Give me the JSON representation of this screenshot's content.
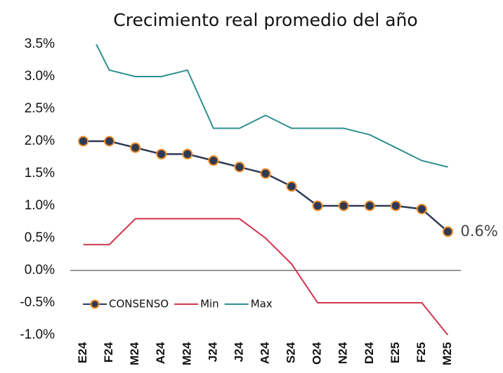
{
  "chart_data": {
    "type": "line",
    "title": "Crecimiento real promedio del año",
    "categories": [
      "E24",
      "F24",
      "M24",
      "A24",
      "M24",
      "J24",
      "J24",
      "A24",
      "S24",
      "O24",
      "N24",
      "D24",
      "E25",
      "F25",
      "M25"
    ],
    "series": [
      {
        "name": "CONSENSO",
        "color": "#2e3a55",
        "marker_color": "#f08a24",
        "values": [
          2.0,
          2.0,
          1.9,
          1.8,
          1.8,
          1.7,
          1.6,
          1.5,
          1.3,
          1.0,
          1.0,
          1.0,
          1.0,
          0.95,
          0.6
        ],
        "value_labels": [
          null,
          null,
          null,
          null,
          null,
          null,
          null,
          null,
          null,
          null,
          null,
          null,
          null,
          null,
          "0.6%"
        ]
      },
      {
        "name": "Min",
        "color": "#d0344e",
        "values": [
          0.4,
          0.4,
          0.8,
          0.8,
          0.8,
          0.8,
          0.8,
          0.5,
          0.1,
          -0.5,
          -0.5,
          -0.5,
          -0.5,
          -0.5,
          -1.0
        ]
      },
      {
        "name": "Max",
        "color": "#2f8f8f",
        "values": [
          3.9,
          3.1,
          3.0,
          3.0,
          3.1,
          2.2,
          2.2,
          2.4,
          2.2,
          2.2,
          2.2,
          2.1,
          1.9,
          1.7,
          1.6
        ]
      }
    ],
    "ylim": [
      -1.0,
      3.5
    ],
    "yticks": [
      {
        "value": 3.5,
        "label": "3.5%"
      },
      {
        "value": 3.0,
        "label": "3.0%"
      },
      {
        "value": 2.5,
        "label": "2.5%"
      },
      {
        "value": 2.0,
        "label": "2.0%"
      },
      {
        "value": 1.5,
        "label": "1.5%"
      },
      {
        "value": 1.0,
        "label": "1.0%"
      },
      {
        "value": 0.5,
        "label": "0.5%"
      },
      {
        "value": 0.0,
        "label": "0.0%"
      },
      {
        "value": -0.5,
        "label": "-0.5%"
      },
      {
        "value": -1.0,
        "label": "-1.0%"
      }
    ],
    "legend": "lower-left"
  }
}
